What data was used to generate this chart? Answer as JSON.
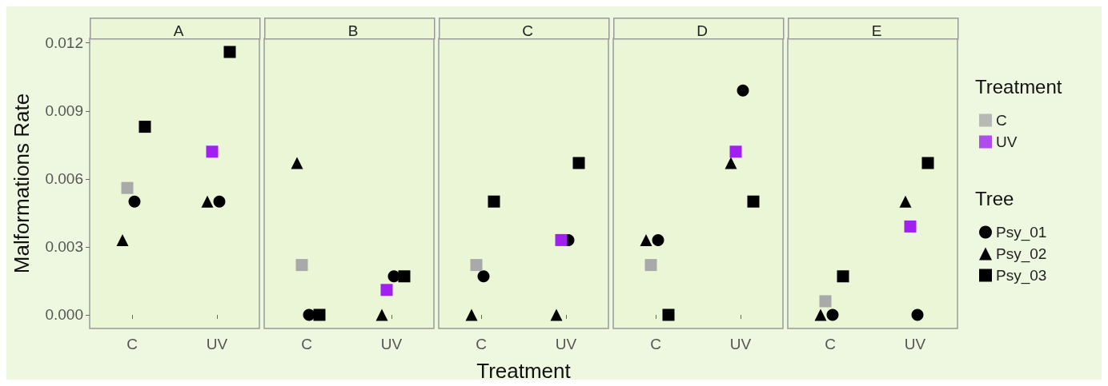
{
  "chart_data": [
    {
      "type": "scatter",
      "title": "A",
      "ylabel": "Malformations Rate",
      "categories": [
        "C",
        "UV"
      ],
      "ylim": [
        -0.0006,
        0.0122
      ],
      "yticks": [
        {
          "value": 0,
          "label": "0.000"
        },
        {
          "value": 0.003,
          "label": "0.003"
        },
        {
          "value": 0.006,
          "label": "0.006"
        },
        {
          "value": 0.009,
          "label": "0.009"
        },
        {
          "value": 0.012,
          "label": "0.012"
        }
      ],
      "grid": false,
      "series": [
        {
          "color": "#000000",
          "marker": "circle",
          "values": [
            0.005,
            0.005
          ]
        },
        {
          "color": "#000000",
          "marker": "triangle",
          "values": [
            0.0033,
            0.005
          ]
        },
        {
          "color": "#000000",
          "marker": "square",
          "values": [
            0.0083,
            0.0116
          ]
        },
        {
          "colors": [
            "#a9a9a9",
            "#a020f0"
          ],
          "marker": "square",
          "values": [
            0.0056,
            0.0072
          ]
        }
      ]
    },
    {
      "type": "scatter",
      "title": "B",
      "categories": [
        "C",
        "UV"
      ],
      "ylim": [
        -0.0006,
        0.0122
      ],
      "grid": false,
      "tick_labels": "x",
      "series": [
        {
          "color": "#000000",
          "marker": "circle",
          "values": [
            0,
            0.0017
          ]
        },
        {
          "color": "#000000",
          "marker": "triangle",
          "values": [
            0.0067,
            0
          ]
        },
        {
          "color": "#000000",
          "marker": "square",
          "values": [
            0,
            0.0017
          ]
        },
        {
          "colors": [
            "#a9a9a9",
            "#a020f0"
          ],
          "marker": "square",
          "values": [
            0.0022,
            0.0011
          ]
        }
      ]
    },
    {
      "type": "scatter",
      "title": "C",
      "xlabel": "Treatment",
      "categories": [
        "C",
        "UV"
      ],
      "ylim": [
        -0.0006,
        0.0122
      ],
      "grid": false,
      "tick_labels": "x",
      "series": [
        {
          "color": "#000000",
          "marker": "circle",
          "values": [
            0.0017,
            0.0033
          ]
        },
        {
          "color": "#000000",
          "marker": "triangle",
          "values": [
            0,
            0
          ]
        },
        {
          "color": "#000000",
          "marker": "square",
          "values": [
            0.005,
            0.0067
          ]
        },
        {
          "colors": [
            "#a9a9a9",
            "#a020f0"
          ],
          "marker": "square",
          "values": [
            0.0022,
            0.0033
          ]
        }
      ]
    },
    {
      "type": "scatter",
      "title": "D",
      "categories": [
        "C",
        "UV"
      ],
      "ylim": [
        -0.0006,
        0.0122
      ],
      "grid": false,
      "tick_labels": "x",
      "series": [
        {
          "color": "#000000",
          "marker": "circle",
          "values": [
            0.0033,
            0.0099
          ]
        },
        {
          "color": "#000000",
          "marker": "triangle",
          "values": [
            0.0033,
            0.0067
          ]
        },
        {
          "color": "#000000",
          "marker": "square",
          "values": [
            0,
            0.005
          ]
        },
        {
          "colors": [
            "#a9a9a9",
            "#a020f0"
          ],
          "marker": "square",
          "values": [
            0.0022,
            0.0072
          ]
        }
      ]
    },
    {
      "type": "scatter",
      "title": "E",
      "categories": [
        "C",
        "UV"
      ],
      "ylim": [
        -0.0006,
        0.0122
      ],
      "grid": false,
      "tick_labels": "x",
      "legend": "right",
      "legend_title": [
        "Treatment",
        "Tree"
      ],
      "series": [
        {
          "name": "Psy_01",
          "color": "#000000",
          "marker": "circle",
          "values": [
            0,
            0
          ]
        },
        {
          "name": "Psy_02",
          "color": "#000000",
          "marker": "triangle",
          "values": [
            0,
            0.005
          ]
        },
        {
          "name": "Psy_03",
          "color": "#000000",
          "marker": "square",
          "values": [
            0.0017,
            0.0067
          ]
        },
        {
          "colors": [
            "#a9a9a9",
            "#a020f0"
          ],
          "marker": "square",
          "values": [
            0.0006,
            0.0039
          ]
        }
      ]
    }
  ]
}
